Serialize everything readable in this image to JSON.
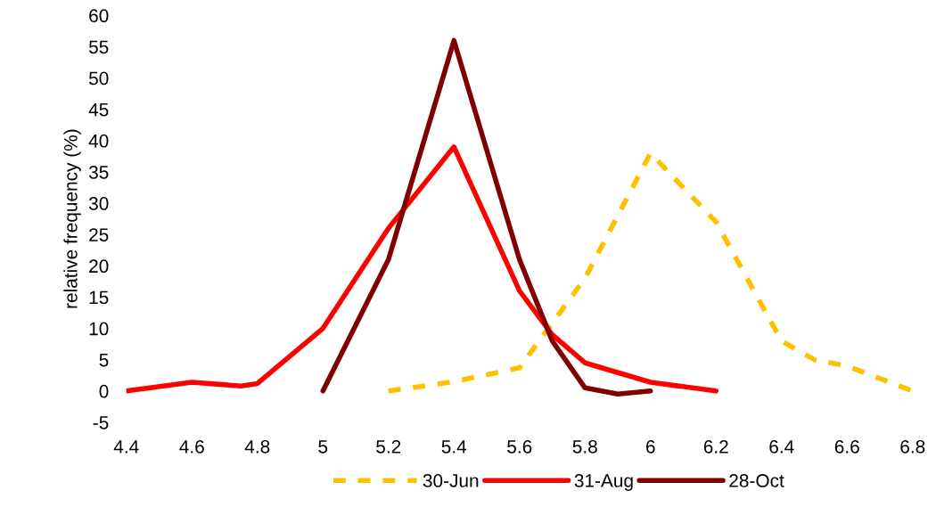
{
  "chart_data": {
    "type": "line",
    "ylabel": "relative frequency (%)",
    "xlim": [
      4.4,
      6.8
    ],
    "xticks": [
      4.4,
      4.6,
      4.8,
      5,
      5.2,
      5.4,
      5.6,
      5.8,
      6,
      6.2,
      6.4,
      6.6,
      6.8
    ],
    "ylim": [
      -5,
      60
    ],
    "yticks": [
      -5,
      0,
      5,
      10,
      15,
      20,
      25,
      30,
      35,
      40,
      45,
      50,
      55,
      60
    ],
    "grid": false,
    "legend": "bottom",
    "marker": "none",
    "series": [
      {
        "name": "30-Jun",
        "color": "#ffc000",
        "line_style": "dashed",
        "x": [
          5.2,
          5.4,
          5.6,
          5.8,
          6.0,
          6.2,
          6.4,
          6.5,
          6.6,
          6.8
        ],
        "values": [
          0,
          1.5,
          3.7,
          18,
          38,
          27,
          8,
          5,
          4,
          0
        ]
      },
      {
        "name": "31-Aug",
        "color": "#ff0000",
        "line_style": "solid",
        "x": [
          4.4,
          4.6,
          4.75,
          4.8,
          5.0,
          5.2,
          5.4,
          5.6,
          5.7,
          5.8,
          6.0,
          6.2
        ],
        "values": [
          0,
          1.4,
          0.8,
          1.2,
          10,
          26,
          39,
          16,
          9,
          4.5,
          1.4,
          0
        ]
      },
      {
        "name": "28-Oct",
        "color": "#800000",
        "line_style": "solid",
        "x": [
          5.0,
          5.2,
          5.4,
          5.6,
          5.7,
          5.8,
          5.9,
          6.0
        ],
        "values": [
          0,
          21,
          56,
          21,
          8,
          0.5,
          -0.5,
          0
        ]
      }
    ]
  }
}
